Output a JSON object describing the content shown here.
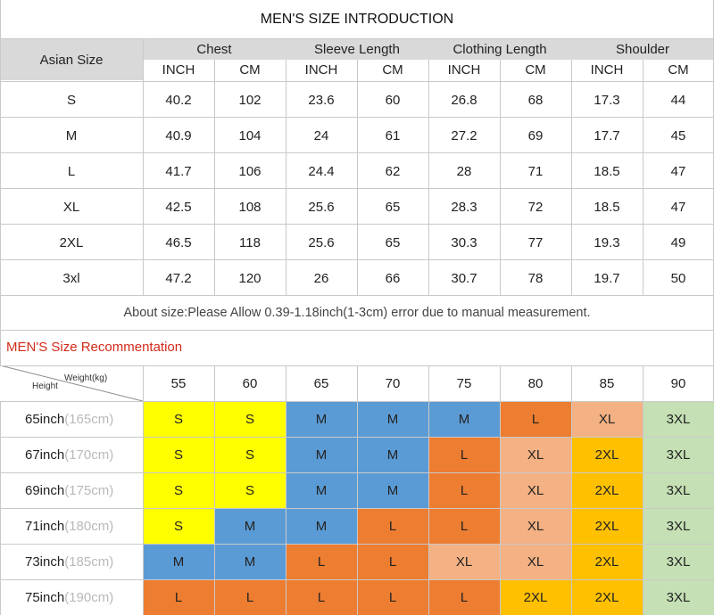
{
  "size_intro": {
    "title": "MEN'S SIZE INTRODUCTION",
    "asian_size_label": "Asian Size",
    "groups": [
      "Chest",
      "Sleeve Length",
      "Clothing Length",
      "Shoulder"
    ],
    "unit_labels": [
      "INCH",
      "CM",
      "INCH",
      "CM",
      "INCH",
      "CM",
      "INCH",
      "CM"
    ],
    "rows": [
      {
        "size": "S",
        "values": [
          "40.2",
          "102",
          "23.6",
          "60",
          "26.8",
          "68",
          "17.3",
          "44"
        ]
      },
      {
        "size": "M",
        "values": [
          "40.9",
          "104",
          "24",
          "61",
          "27.2",
          "69",
          "17.7",
          "45"
        ]
      },
      {
        "size": "L",
        "values": [
          "41.7",
          "106",
          "24.4",
          "62",
          "28",
          "71",
          "18.5",
          "47"
        ]
      },
      {
        "size": "XL",
        "values": [
          "42.5",
          "108",
          "25.6",
          "65",
          "28.3",
          "72",
          "18.5",
          "47"
        ]
      },
      {
        "size": "2XL",
        "values": [
          "46.5",
          "118",
          "25.6",
          "65",
          "30.3",
          "77",
          "19.3",
          "49"
        ]
      },
      {
        "size": "3xl",
        "values": [
          "47.2",
          "120",
          "26",
          "66",
          "30.7",
          "78",
          "19.7",
          "50"
        ]
      }
    ],
    "note": "About size:Please Allow 0.39-1.18inch(1-3cm) error due to manual measurement."
  },
  "recommendation": {
    "title": "MEN'S Size Recommentation",
    "weight_label": "Weight(kg)",
    "height_label": "Height",
    "weights": [
      "55",
      "60",
      "65",
      "70",
      "75",
      "80",
      "85",
      "90"
    ],
    "heights": [
      {
        "inch": "65inch",
        "cm": "(165cm)"
      },
      {
        "inch": "67inch",
        "cm": "(170cm)"
      },
      {
        "inch": "69inch",
        "cm": "(175cm)"
      },
      {
        "inch": "71inch",
        "cm": "(180cm)"
      },
      {
        "inch": "73inch",
        "cm": "(185cm)"
      },
      {
        "inch": "75inch",
        "cm": "(190cm)"
      }
    ],
    "grid": [
      [
        "S",
        "S",
        "M",
        "M",
        "M",
        "L",
        "XL",
        "3XL"
      ],
      [
        "S",
        "S",
        "M",
        "M",
        "L",
        "XL",
        "2XL",
        "3XL"
      ],
      [
        "S",
        "S",
        "M",
        "M",
        "L",
        "XL",
        "2XL",
        "3XL"
      ],
      [
        "S",
        "M",
        "M",
        "L",
        "L",
        "XL",
        "2XL",
        "3XL"
      ],
      [
        "M",
        "M",
        "L",
        "L",
        "XL",
        "XL",
        "2XL",
        "3XL"
      ],
      [
        "L",
        "L",
        "L",
        "L",
        "L",
        "2XL",
        "2XL",
        "3XL"
      ]
    ],
    "size_colors": {
      "S": "#ffff00",
      "M": "#5b9bd5",
      "L": "#ed7d31",
      "XL": "#f4b183",
      "2XL": "#ffc000",
      "3XL": "#c5e0b4"
    },
    "title_color": "#d42a1a"
  }
}
